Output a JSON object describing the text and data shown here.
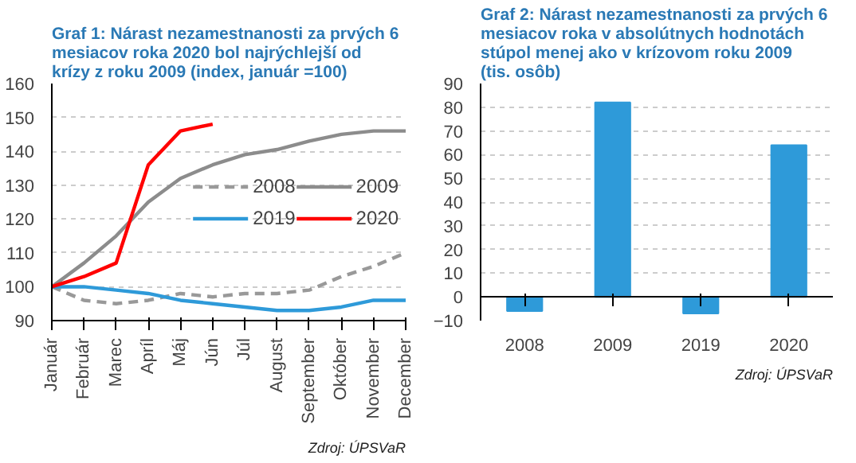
{
  "chart_data": [
    {
      "type": "line",
      "title": "Graf 1: Nárast nezamestnanosti za prvých 6 mesiacov roka 2020 bol najrýchlejší od krízy z roku 2009 (index, január =100)",
      "categories": [
        "Január",
        "Február",
        "Marec",
        "Apríl",
        "Máj",
        "Jún",
        "Júl",
        "August",
        "September",
        "Október",
        "November",
        "December"
      ],
      "series": [
        {
          "name": "2008",
          "color": "#999999",
          "line_style": "dashed",
          "values": [
            100,
            96,
            95,
            96,
            98,
            97,
            98,
            98,
            99,
            103,
            106,
            110
          ]
        },
        {
          "name": "2009",
          "color": "#8c8c8c",
          "line_style": "solid",
          "values": [
            100,
            107,
            115,
            125,
            132,
            136,
            139,
            140.5,
            143,
            145,
            146,
            146
          ]
        },
        {
          "name": "2019",
          "color": "#2e9ad9",
          "line_style": "solid",
          "values": [
            100,
            100,
            99,
            98,
            96,
            95,
            94,
            93,
            93,
            94,
            96,
            96
          ]
        },
        {
          "name": "2020",
          "color": "#ff0000",
          "line_style": "solid",
          "values": [
            100,
            103,
            107,
            136,
            146,
            148,
            null,
            null,
            null,
            null,
            null,
            null
          ]
        }
      ],
      "ylim": [
        90,
        160
      ],
      "yticks": [
        90,
        100,
        110,
        120,
        130,
        140,
        150,
        160
      ],
      "grid": "y",
      "legend": "right",
      "marker": "none",
      "annotations": [
        "Zdroj: ÚPSVaR"
      ]
    },
    {
      "type": "bar",
      "title": "Graf 2: Nárast nezamestnanosti za prvých 6 mesiacov roka v absolútnych hodnotách stúpol menej ako v krízovom roku 2009 (tis. osôb)",
      "categories": [
        "2008",
        "2009",
        "2019",
        "2020"
      ],
      "values": [
        -6,
        82,
        -7,
        64
      ],
      "color": "#2e9ad9",
      "ylim": [
        -10,
        90
      ],
      "yticks": [
        -10,
        0,
        10,
        20,
        30,
        40,
        50,
        60,
        70,
        80,
        90
      ],
      "grid": "y",
      "annotations": [
        "Zdroj: ÚPSVaR"
      ]
    }
  ]
}
